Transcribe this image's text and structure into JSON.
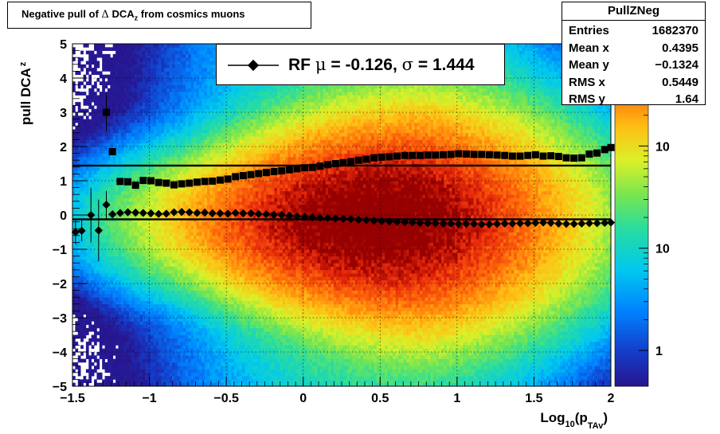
{
  "title": {
    "prefix": "Negative pull of",
    "delta": "Δ",
    "quantity": "DCA",
    "sub": "z",
    "suffix": "from cosmics muons"
  },
  "stats": {
    "name": "PullZNeg",
    "rows": [
      {
        "label": "Entries",
        "value": "1682370"
      },
      {
        "label": "Mean x",
        "value": "0.4395"
      },
      {
        "label": "Mean y",
        "value": "−0.1324"
      },
      {
        "label": "RMS x",
        "value": "0.5449"
      },
      {
        "label": "RMS y",
        "value": "1.64"
      }
    ]
  },
  "legend": {
    "label_rf": "RF",
    "mu": "μ",
    "mu_text": "= -0.126,",
    "sigma": "σ",
    "sigma_text": "= 1.444"
  },
  "palette": {
    "low": "#2020a0",
    "mid_blue": "#00a0ff",
    "cyan": "#00e0e0",
    "green": "#60e060",
    "yellow": "#f0f020",
    "orange": "#ff8000",
    "red": "#e02010",
    "dark_red": "#900000"
  },
  "chart_data": {
    "type": "heatmap",
    "xlabel": {
      "main": "Log",
      "sub1": "10",
      "open": "(p",
      "sub2": "TAv",
      "close": ")"
    },
    "ylabel": {
      "main": "pull DCA",
      "sub": "z"
    },
    "xlim": [
      -1.5,
      2.0
    ],
    "ylim": [
      -5,
      5
    ],
    "x_ticks": [
      {
        "v": -1.5,
        "label": "−1.5"
      },
      {
        "v": -1.0,
        "label": "−1"
      },
      {
        "v": -0.5,
        "label": "−0.5"
      },
      {
        "v": 0.0,
        "label": "0"
      },
      {
        "v": 0.5,
        "label": "0.5"
      },
      {
        "v": 1.0,
        "label": "1"
      },
      {
        "v": 1.5,
        "label": "1.5"
      },
      {
        "v": 2.0,
        "label": "2"
      }
    ],
    "y_ticks": [
      {
        "v": 5,
        "label": "5"
      },
      {
        "v": 4,
        "label": "4"
      },
      {
        "v": 3,
        "label": "3"
      },
      {
        "v": 2,
        "label": "2"
      },
      {
        "v": 1,
        "label": "1"
      },
      {
        "v": 0,
        "label": "0"
      },
      {
        "v": -1,
        "label": "−1"
      },
      {
        "v": -2,
        "label": "−2"
      },
      {
        "v": -3,
        "label": "−3"
      },
      {
        "v": -4,
        "label": "−4"
      },
      {
        "v": -5,
        "label": "−5"
      }
    ],
    "grid": true,
    "z_log": true,
    "colorbar_labels": [
      {
        "v": 1,
        "label": "1"
      },
      {
        "v": 10,
        "label": "10"
      },
      {
        "v": 100,
        "label": "10"
      }
    ],
    "zmax": 1000,
    "fit_lines": [
      {
        "name": "sigma",
        "y": 1.444
      },
      {
        "name": "mu",
        "y": -0.126
      }
    ],
    "series": [
      {
        "name": "sigma",
        "marker": "square",
        "x": [
          -1.24,
          -1.19,
          -1.14,
          -1.09,
          -1.04,
          -0.99,
          -0.94,
          -0.89,
          -0.84,
          -0.79,
          -0.74,
          -0.69,
          -0.64,
          -0.59,
          -0.54,
          -0.49,
          -0.44,
          -0.39,
          -0.34,
          -0.29,
          -0.24,
          -0.19,
          -0.14,
          -0.09,
          -0.04,
          0.01,
          0.06,
          0.11,
          0.16,
          0.21,
          0.26,
          0.31,
          0.36,
          0.41,
          0.46,
          0.51,
          0.56,
          0.61,
          0.66,
          0.71,
          0.76,
          0.81,
          0.86,
          0.91,
          0.96,
          1.01,
          1.06,
          1.11,
          1.16,
          1.21,
          1.26,
          1.31,
          1.36,
          1.41,
          1.46,
          1.51,
          1.56,
          1.61,
          1.66,
          1.71,
          1.76,
          1.81,
          1.86,
          1.91,
          1.96,
          2.0
        ],
        "y": [
          1.85,
          0.98,
          0.97,
          0.87,
          1.01,
          1.0,
          0.95,
          0.93,
          0.88,
          0.91,
          0.93,
          0.96,
          0.98,
          0.99,
          1.02,
          1.05,
          1.12,
          1.15,
          1.18,
          1.21,
          1.24,
          1.27,
          1.29,
          1.32,
          1.35,
          1.38,
          1.39,
          1.43,
          1.47,
          1.5,
          1.53,
          1.56,
          1.6,
          1.63,
          1.67,
          1.69,
          1.7,
          1.72,
          1.74,
          1.74,
          1.74,
          1.75,
          1.75,
          1.76,
          1.77,
          1.79,
          1.78,
          1.77,
          1.77,
          1.76,
          1.75,
          1.74,
          1.72,
          1.72,
          1.74,
          1.76,
          1.72,
          1.73,
          1.71,
          1.67,
          1.66,
          1.67,
          1.78,
          1.81,
          1.91,
          1.97
        ]
      },
      {
        "name": "mu",
        "marker": "diamond",
        "x": [
          -1.24,
          -1.19,
          -1.14,
          -1.09,
          -1.04,
          -0.99,
          -0.94,
          -0.89,
          -0.84,
          -0.79,
          -0.74,
          -0.69,
          -0.64,
          -0.59,
          -0.54,
          -0.49,
          -0.44,
          -0.39,
          -0.34,
          -0.29,
          -0.24,
          -0.19,
          -0.14,
          -0.09,
          -0.04,
          0.01,
          0.06,
          0.11,
          0.16,
          0.21,
          0.26,
          0.31,
          0.36,
          0.41,
          0.46,
          0.51,
          0.56,
          0.61,
          0.66,
          0.71,
          0.76,
          0.81,
          0.86,
          0.91,
          0.96,
          1.01,
          1.06,
          1.11,
          1.16,
          1.21,
          1.26,
          1.31,
          1.36,
          1.41,
          1.46,
          1.51,
          1.56,
          1.61,
          1.66,
          1.71,
          1.76,
          1.81,
          1.86,
          1.91,
          1.96,
          2.0
        ],
        "y": [
          0.02,
          0.06,
          0.08,
          0.07,
          0.06,
          0.05,
          0.03,
          0.04,
          0.08,
          0.09,
          0.08,
          0.06,
          0.07,
          0.05,
          0.05,
          0.04,
          0.06,
          0.05,
          0.05,
          0.03,
          0.02,
          0.01,
          0.0,
          -0.02,
          -0.04,
          -0.05,
          -0.07,
          -0.08,
          -0.09,
          -0.1,
          -0.11,
          -0.12,
          -0.14,
          -0.15,
          -0.17,
          -0.18,
          -0.19,
          -0.2,
          -0.21,
          -0.22,
          -0.23,
          -0.24,
          -0.24,
          -0.25,
          -0.25,
          -0.26,
          -0.26,
          -0.26,
          -0.27,
          -0.27,
          -0.26,
          -0.25,
          -0.25,
          -0.24,
          -0.24,
          -0.23,
          -0.22,
          -0.23,
          -0.25,
          -0.26,
          -0.26,
          -0.25,
          -0.24,
          -0.24,
          -0.23,
          -0.22
        ]
      },
      {
        "name": "sigma-sparse",
        "marker": "square",
        "x": [
          -1.28
        ],
        "y": [
          3.0
        ],
        "yerr": [
          0.55
        ]
      },
      {
        "name": "mu-sparse",
        "marker": "diamond",
        "x": [
          -1.48,
          -1.44,
          -1.38,
          -1.33,
          -1.28
        ],
        "y": [
          -0.5,
          -0.46,
          0.0,
          -0.45,
          0.3
        ],
        "yerr": [
          0.35,
          0.3,
          0.8,
          0.9,
          0.4
        ]
      }
    ]
  }
}
